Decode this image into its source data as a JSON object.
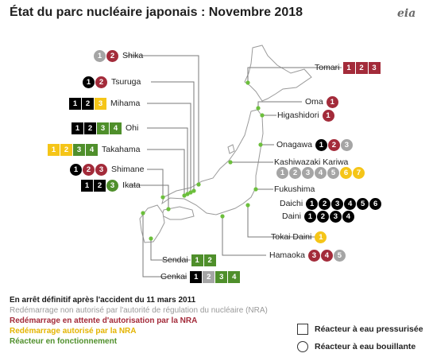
{
  "title": "État du parc nucléaire japonais : Novembre 2018",
  "logo": "eia",
  "colors": {
    "off": "#000000",
    "not_authorized": "#a5a5a5",
    "pending": "#a32b3a",
    "authorized": "#f5c518",
    "running": "#4f8f2b",
    "land": "#ffffff",
    "coast": "#9a9a9a",
    "site_marker": "#6cbf3c"
  },
  "plants": [
    {
      "key": "shika",
      "name": "Shika",
      "side": "left",
      "type": "circle",
      "units": [
        {
          "n": "1",
          "s": "na"
        },
        {
          "n": "2",
          "s": "pend"
        }
      ]
    },
    {
      "key": "tsuruga",
      "name": "Tsuruga",
      "side": "left",
      "type": "circle",
      "units": [
        {
          "n": "1",
          "s": "off"
        },
        {
          "n": "2",
          "s": "pend"
        }
      ]
    },
    {
      "key": "mihama",
      "name": "Mihama",
      "side": "left",
      "type": "square",
      "units": [
        {
          "n": "1",
          "s": "off"
        },
        {
          "n": "2",
          "s": "off"
        },
        {
          "n": "3",
          "s": "ok"
        }
      ]
    },
    {
      "key": "ohi",
      "name": "Ohi",
      "side": "left",
      "type": "square",
      "units": [
        {
          "n": "1",
          "s": "off"
        },
        {
          "n": "2",
          "s": "off"
        },
        {
          "n": "3",
          "s": "run"
        },
        {
          "n": "4",
          "s": "run"
        }
      ]
    },
    {
      "key": "takahama",
      "name": "Takahama",
      "side": "left",
      "type": "square",
      "units": [
        {
          "n": "1",
          "s": "ok"
        },
        {
          "n": "2",
          "s": "ok"
        },
        {
          "n": "3",
          "s": "run"
        },
        {
          "n": "4",
          "s": "run"
        }
      ]
    },
    {
      "key": "shimane",
      "name": "Shimane",
      "side": "left",
      "type": "circle",
      "units": [
        {
          "n": "1",
          "s": "off"
        },
        {
          "n": "2",
          "s": "pend"
        },
        {
          "n": "3",
          "s": "pend"
        }
      ]
    },
    {
      "key": "ikata",
      "name": "Ikata",
      "side": "left",
      "type": "mixed",
      "units": [
        {
          "n": "1",
          "s": "off",
          "t": "square"
        },
        {
          "n": "2",
          "s": "off",
          "t": "square"
        },
        {
          "n": "3",
          "s": "run",
          "t": "circle"
        }
      ]
    },
    {
      "key": "sendai",
      "name": "Sendai",
      "side": "left",
      "type": "square",
      "units": [
        {
          "n": "1",
          "s": "run"
        },
        {
          "n": "2",
          "s": "run"
        }
      ]
    },
    {
      "key": "genkai",
      "name": "Genkai",
      "side": "left",
      "type": "square",
      "units": [
        {
          "n": "1",
          "s": "off"
        },
        {
          "n": "2",
          "s": "na"
        },
        {
          "n": "3",
          "s": "run"
        },
        {
          "n": "4",
          "s": "run"
        }
      ]
    },
    {
      "key": "tomari",
      "name": "Tomari",
      "side": "right",
      "type": "square",
      "units": [
        {
          "n": "1",
          "s": "pend"
        },
        {
          "n": "2",
          "s": "pend"
        },
        {
          "n": "3",
          "s": "pend"
        }
      ]
    },
    {
      "key": "oma",
      "name": "Oma",
      "side": "right",
      "type": "circle",
      "units": [
        {
          "n": "1",
          "s": "pend"
        }
      ]
    },
    {
      "key": "higashidori",
      "name": "Higashidori",
      "side": "right",
      "type": "circle",
      "units": [
        {
          "n": "1",
          "s": "pend"
        }
      ]
    },
    {
      "key": "onagawa",
      "name": "Onagawa",
      "side": "right",
      "type": "circle",
      "units": [
        {
          "n": "1",
          "s": "off"
        },
        {
          "n": "2",
          "s": "pend"
        },
        {
          "n": "3",
          "s": "na"
        }
      ]
    },
    {
      "key": "kashiwazaki",
      "name": "Kashiwazaki Kariwa",
      "side": "right",
      "type": "circle",
      "units": [
        {
          "n": "1",
          "s": "na"
        },
        {
          "n": "2",
          "s": "na"
        },
        {
          "n": "3",
          "s": "na"
        },
        {
          "n": "4",
          "s": "na"
        },
        {
          "n": "5",
          "s": "na"
        },
        {
          "n": "6",
          "s": "ok"
        },
        {
          "n": "7",
          "s": "ok"
        }
      ]
    },
    {
      "key": "fukushima",
      "name": "Fukushima",
      "side": "right",
      "type": "none",
      "units": []
    },
    {
      "key": "daichi",
      "name": "Daichi",
      "side": "right",
      "type": "circle",
      "units": [
        {
          "n": "1",
          "s": "off"
        },
        {
          "n": "2",
          "s": "off"
        },
        {
          "n": "3",
          "s": "off"
        },
        {
          "n": "4",
          "s": "off"
        },
        {
          "n": "5",
          "s": "off"
        },
        {
          "n": "6",
          "s": "off"
        }
      ]
    },
    {
      "key": "daini",
      "name": "Daini",
      "side": "right",
      "type": "circle",
      "units": [
        {
          "n": "1",
          "s": "off"
        },
        {
          "n": "2",
          "s": "off"
        },
        {
          "n": "3",
          "s": "off"
        },
        {
          "n": "4",
          "s": "off"
        }
      ]
    },
    {
      "key": "tokai",
      "name": "Tokai Daini",
      "side": "right",
      "type": "circle",
      "units": [
        {
          "n": "1",
          "s": "ok"
        }
      ]
    },
    {
      "key": "hamaoka",
      "name": "Hamaoka",
      "side": "right",
      "type": "circle",
      "units": [
        {
          "n": "3",
          "s": "pend"
        },
        {
          "n": "4",
          "s": "pend"
        },
        {
          "n": "5",
          "s": "na"
        }
      ]
    }
  ],
  "legend": {
    "off": "En arrêt définitif après l'accident du 11 mars 2011",
    "not_authorized": "Redémarrage non autorisé par l'autorité de régulation du nucléaire (NRA)",
    "pending": "Redémarrage en attente d'autorisation par la NRA",
    "authorized": "Redémarrage autorisé par la NRA",
    "running": "Réacteur en fonctionnement",
    "pwr": "Réacteur à eau pressurisée",
    "bwr": "Réacteur à eau bouillante"
  }
}
